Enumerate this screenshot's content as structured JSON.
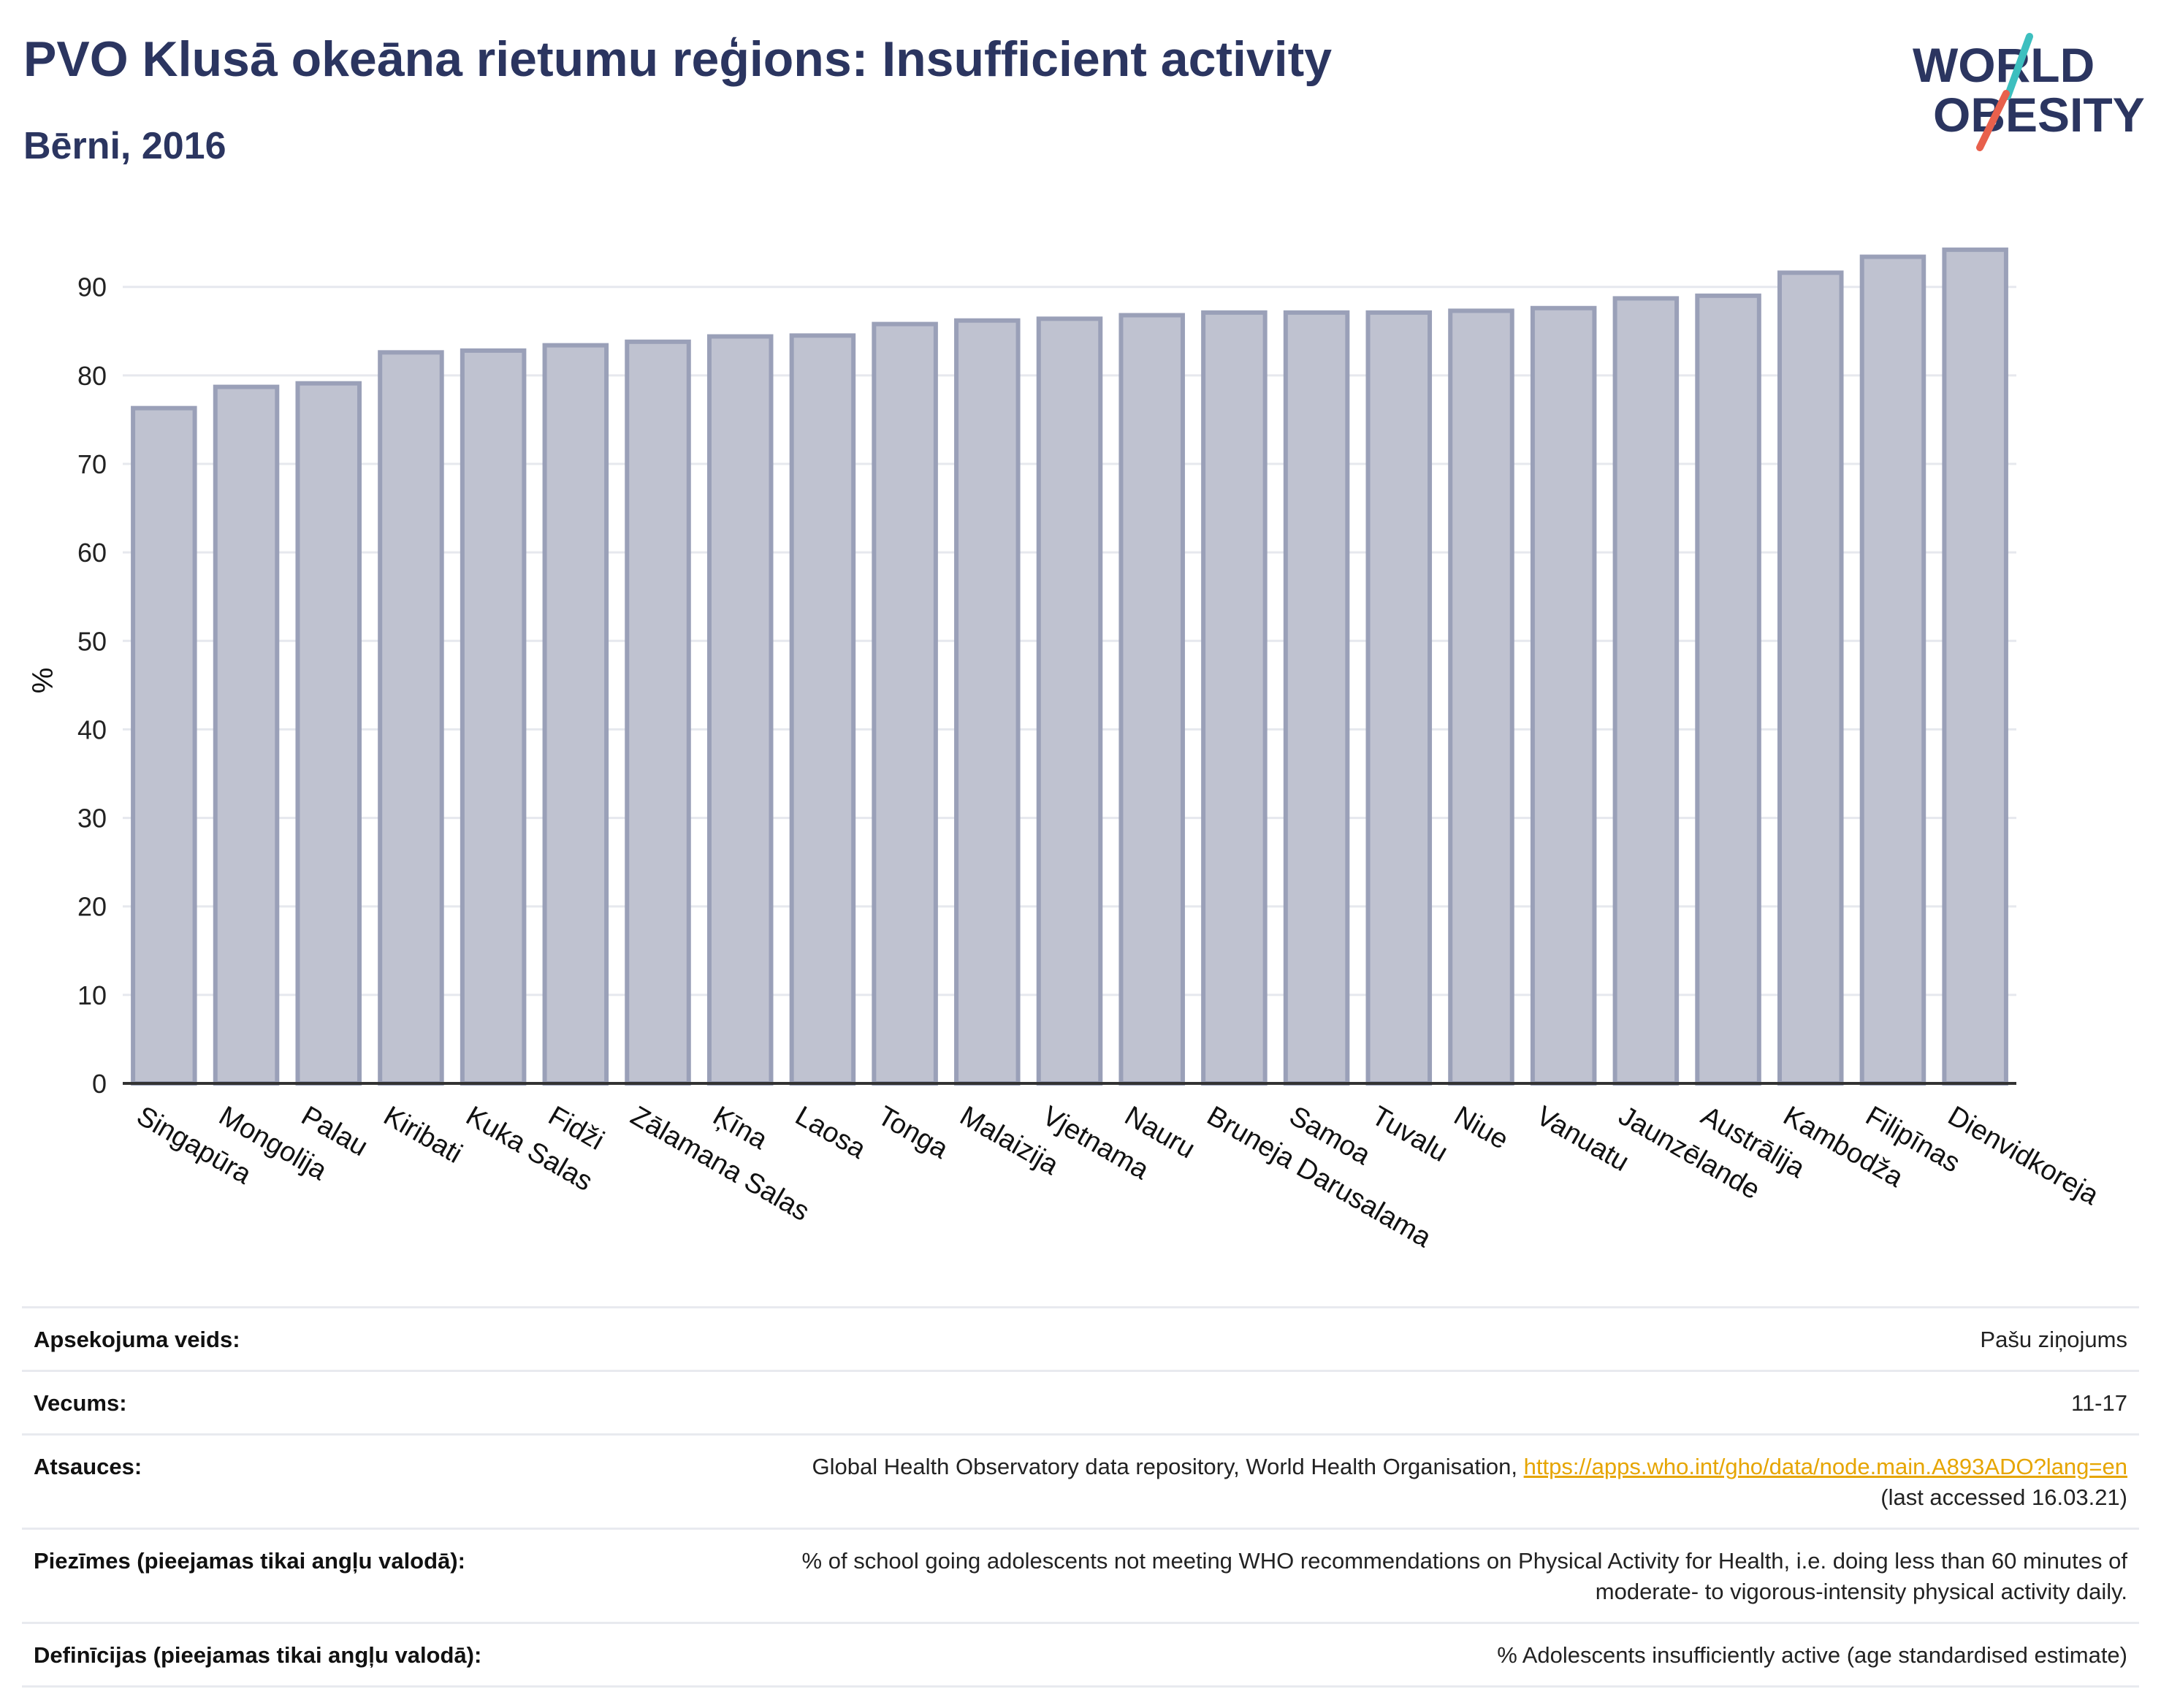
{
  "header": {
    "title": "PVO Klusā okeāna rietumu reģions: Insufficient activity",
    "subtitle": "Bērni, 2016"
  },
  "logo": {
    "line1": "WORLD",
    "line2": "OBESITY",
    "colors": {
      "text": "#2b3560",
      "slash_red": "#e8604c",
      "slash_teal": "#3dbfbf"
    }
  },
  "colors": {
    "bar_fill": "#bfc2d0",
    "bar_stroke": "#9aa0b8",
    "grid": "#e6e8ee",
    "axis": "#333333",
    "heading": "#2b3560",
    "link": "#e6a500"
  },
  "chart_data": {
    "type": "bar",
    "categories": [
      "Singapūra",
      "Mongolija",
      "Palau",
      "Kiribati",
      "Kuka Salas",
      "Fidži",
      "Zālamana Salas",
      "Ķīna",
      "Laosa",
      "Tonga",
      "Malaizija",
      "Vjetnama",
      "Nauru",
      "Bruneja Darusalama",
      "Samoa",
      "Tuvalu",
      "Niue",
      "Vanuatu",
      "Jaunzēlande",
      "Austrālija",
      "Kambodža",
      "Filipīnas",
      "Dienvidkoreja"
    ],
    "values": [
      76.3,
      78.7,
      79.1,
      82.6,
      82.8,
      83.4,
      83.8,
      84.4,
      84.5,
      85.8,
      86.2,
      86.4,
      86.8,
      87.1,
      87.1,
      87.1,
      87.3,
      87.6,
      88.7,
      89.0,
      91.6,
      93.4,
      94.2
    ],
    "ylabel": "%",
    "xlabel": "",
    "ylim": [
      0,
      96
    ],
    "yticks": [
      0,
      10,
      20,
      30,
      40,
      50,
      60,
      70,
      80,
      90
    ],
    "grid": true,
    "legend": "none"
  },
  "meta": {
    "rows": [
      {
        "label": "Apsekojuma veids:",
        "value": "Pašu ziņojums"
      },
      {
        "label": "Vecums:",
        "value": "11-17"
      },
      {
        "label": "Atsauces:",
        "value": "Global Health Observatory data repository, World Health Organisation, ",
        "link": "https://apps.who.int/gho/data/node.main.A893ADO?lang=en",
        "value2": "(last accessed 16.03.21)"
      },
      {
        "label": "Piezīmes (pieejamas tikai angļu valodā):",
        "value": "% of school going adolescents not meeting WHO recommendations on Physical Activity for Health, i.e. doing less than 60 minutes of",
        "value2": "moderate- to vigorous-intensity physical activity daily."
      },
      {
        "label": "Definīcijas (pieejamas tikai angļu valodā):",
        "value": "% Adolescents insufficiently active (age standardised estimate)"
      }
    ]
  }
}
